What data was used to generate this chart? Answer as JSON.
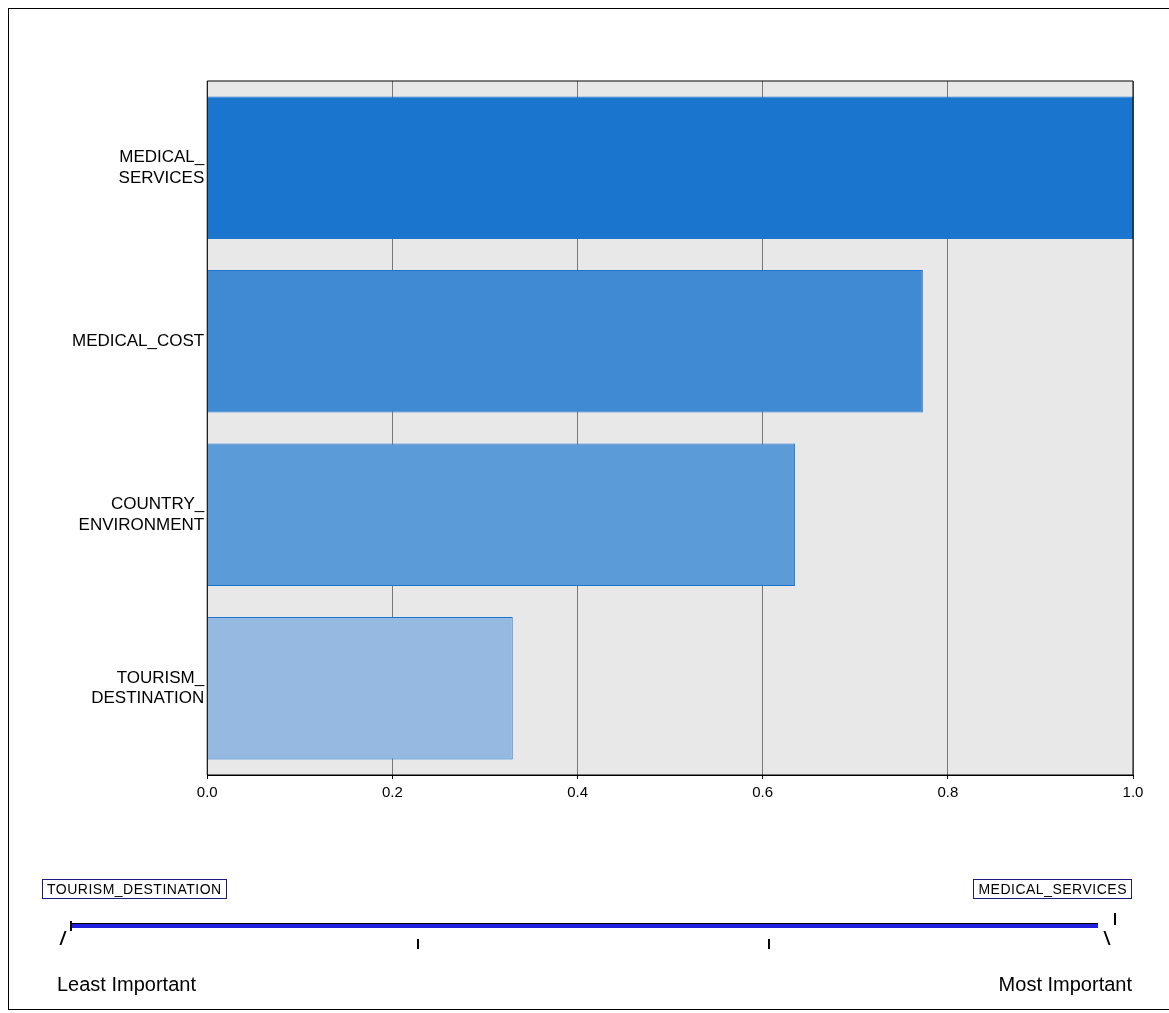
{
  "chart_data": {
    "type": "bar",
    "orientation": "horizontal",
    "categories": [
      "MEDICAL_SERVICES",
      "MEDICAL_COST",
      "COUNTRY_ENVIRONMENT",
      "TOURISM_DESTINATION"
    ],
    "values": [
      1.0,
      0.773,
      0.635,
      0.33
    ],
    "colors": [
      "#1a75cf",
      "#3f8ad3",
      "#5a9bd8",
      "#95b9e0"
    ],
    "xlim": [
      0,
      1
    ],
    "xticks": [
      {
        "value": 0,
        "label": "0.0"
      },
      {
        "value": 0.2,
        "label": "0.2"
      },
      {
        "value": 0.4,
        "label": "0.4"
      },
      {
        "value": 0.6,
        "label": "0.6"
      },
      {
        "value": 0.8,
        "label": "0.8"
      },
      {
        "value": 1,
        "label": "1.0"
      }
    ],
    "grid": "x",
    "legend": false,
    "annotations": [
      "TOURISM_DESTINATION",
      "MEDICAL_SERVICES",
      "Least Important",
      "Most Important"
    ]
  }
}
